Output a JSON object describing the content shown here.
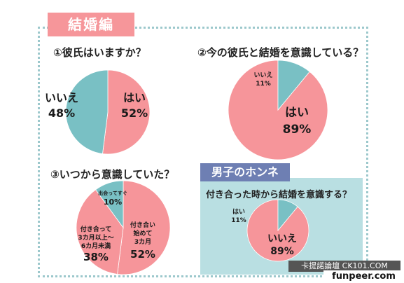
{
  "section_title": "結婚編",
  "men_box_label": "男子のホンネ",
  "watermark": "卡提諾論壇 CK101.COM",
  "site": "funpeer.com",
  "colors": {
    "pink": "#f6959a",
    "teal": "#79c0c4",
    "frame": "#9cc8cc",
    "men_label": "#6e7fb3",
    "men_box": "#b9dfe2"
  },
  "chart_data": [
    {
      "type": "pie",
      "title": "①彼氏はいますか？",
      "slices": [
        {
          "label": "はい",
          "value": 52,
          "display": "52%"
        },
        {
          "label": "いいえ",
          "value": 48,
          "display": "48%"
        }
      ]
    },
    {
      "type": "pie",
      "title": "②今の彼氏と結婚を意識している？",
      "slices": [
        {
          "label": "はい",
          "value": 89,
          "display": "89%"
        },
        {
          "label": "いいえ",
          "value": 11,
          "display": "11%"
        }
      ]
    },
    {
      "type": "pie",
      "title": "③いつから意識していた？",
      "slices": [
        {
          "label": "付き合い始めて3カ月",
          "lines": [
            "付き合い",
            "始めて",
            "3カ月"
          ],
          "value": 52,
          "display": "52%"
        },
        {
          "label": "付き合って3カ月以上～6カ月未満",
          "lines": [
            "付き合って",
            "3カ月以上～",
            "6カ月未満"
          ],
          "value": 38,
          "display": "38%"
        },
        {
          "label": "出会ってすぐ",
          "lines": [
            "出会ってすぐ"
          ],
          "value": 10,
          "display": "10%"
        }
      ]
    },
    {
      "type": "pie",
      "title": "付き合った時から結婚を意識する？",
      "slices": [
        {
          "label": "いいえ",
          "value": 89,
          "display": "89%"
        },
        {
          "label": "はい",
          "value": 11,
          "display": "11%"
        }
      ]
    }
  ]
}
